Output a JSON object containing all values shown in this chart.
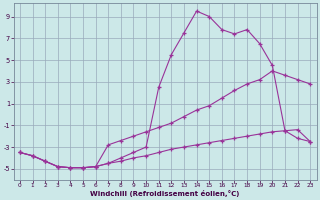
{
  "xlabel": "Windchill (Refroidissement éolien,°C)",
  "bg_color": "#cce8e8",
  "line_color": "#993399",
  "grid_color": "#99aabb",
  "xlim": [
    -0.5,
    23.5
  ],
  "ylim": [
    -6.0,
    10.2
  ],
  "xticks": [
    0,
    1,
    2,
    3,
    4,
    5,
    6,
    7,
    8,
    9,
    10,
    11,
    12,
    13,
    14,
    15,
    16,
    17,
    18,
    19,
    20,
    21,
    22,
    23
  ],
  "yticks": [
    -5,
    -3,
    -1,
    1,
    3,
    5,
    7,
    9
  ],
  "curve_top_x": [
    0,
    1,
    2,
    3,
    4,
    5,
    6,
    7,
    8,
    9,
    10,
    11,
    12,
    13,
    14,
    15,
    16,
    17,
    18,
    19,
    20,
    21,
    22,
    23
  ],
  "curve_top_y": [
    -3.5,
    -3.8,
    -4.3,
    -4.8,
    -4.9,
    -4.9,
    -4.8,
    -4.5,
    -4.0,
    -3.5,
    -3.0,
    2.5,
    5.5,
    7.5,
    9.5,
    9.0,
    7.8,
    7.4,
    7.8,
    6.5,
    4.5,
    -1.5,
    -2.2,
    -2.5
  ],
  "curve_mid_x": [
    0,
    1,
    2,
    3,
    4,
    5,
    6,
    7,
    8,
    9,
    10,
    11,
    12,
    13,
    14,
    15,
    16,
    17,
    18,
    19,
    20,
    21,
    22,
    23
  ],
  "curve_mid_y": [
    -3.5,
    -3.8,
    -4.3,
    -4.8,
    -4.9,
    -4.9,
    -4.8,
    -2.8,
    -2.4,
    -2.0,
    -1.6,
    -1.2,
    -0.8,
    -0.2,
    0.4,
    0.8,
    1.5,
    2.2,
    2.8,
    3.2,
    4.0,
    3.6,
    3.2,
    2.8
  ],
  "curve_bot_x": [
    0,
    1,
    2,
    3,
    4,
    5,
    6,
    7,
    8,
    9,
    10,
    11,
    12,
    13,
    14,
    15,
    16,
    17,
    18,
    19,
    20,
    21,
    22,
    23
  ],
  "curve_bot_y": [
    -3.5,
    -3.8,
    -4.3,
    -4.8,
    -4.9,
    -4.9,
    -4.8,
    -4.5,
    -4.3,
    -4.0,
    -3.8,
    -3.5,
    -3.2,
    -3.0,
    -2.8,
    -2.6,
    -2.4,
    -2.2,
    -2.0,
    -1.8,
    -1.6,
    -1.5,
    -1.4,
    -2.5
  ]
}
